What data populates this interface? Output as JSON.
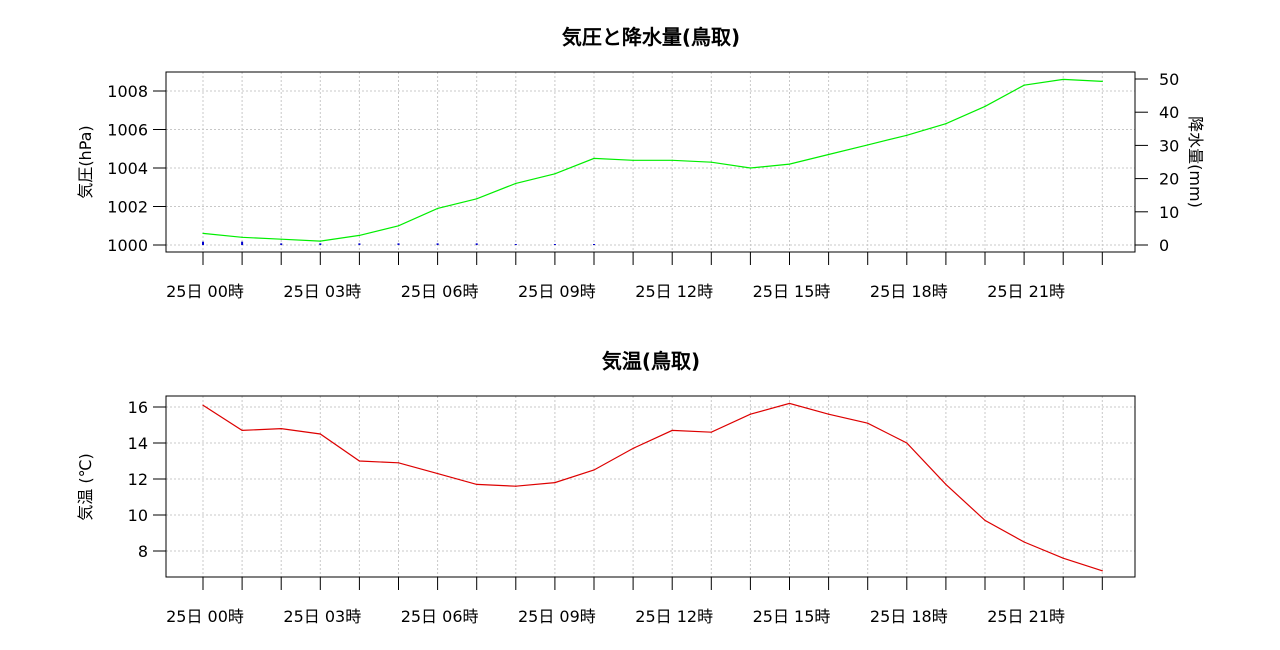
{
  "chart_data": [
    {
      "type": "line",
      "title": "気圧と降水量(鳥取)",
      "ylabel_left": "気圧(hPa)",
      "ylabel_right": "降水量(mm)",
      "ylim_left": [
        1000,
        1008.8
      ],
      "ylim_right": [
        0,
        52
      ],
      "yticks_left": [
        "1000",
        "1002",
        "1004",
        "1006",
        "1008"
      ],
      "yticks_right": [
        "0",
        "10",
        "20",
        "30",
        "40",
        "50"
      ],
      "x_tick_labels": [
        "25日  00時",
        "25日  03時",
        "25日  06時",
        "25日  09時",
        "25日  12時",
        "25日  15時",
        "25日  18時",
        "25日  21時"
      ],
      "grid": true,
      "series": [
        {
          "kind": "line",
          "axis": "left",
          "color": "#00ee00",
          "values": [
            1000.6,
            1000.4,
            1000.3,
            1000.2,
            1000.5,
            1001.0,
            1001.9,
            1002.4,
            1003.2,
            1003.7,
            1004.5,
            1004.4,
            1004.4,
            1004.3,
            1004.0,
            1004.2,
            1004.7,
            1005.2,
            1005.7,
            1006.3,
            1007.2,
            1008.3,
            1008.6,
            1008.5
          ]
        },
        {
          "kind": "bar",
          "axis": "right",
          "color": "#0000cc",
          "values": [
            1,
            1,
            0.5,
            0.5,
            0.5,
            0.5,
            0.5,
            0.5,
            0.3,
            0.3,
            0.3,
            0,
            0,
            0,
            0,
            0,
            0,
            0,
            0,
            0,
            0,
            0,
            0,
            0
          ]
        }
      ]
    },
    {
      "type": "line",
      "title": "気温(鳥取)",
      "ylabel": "気温 (℃)",
      "ylim": [
        6.7,
        16.65
      ],
      "yticks": [
        "8",
        "10",
        "12",
        "14",
        "16"
      ],
      "x_tick_labels": [
        "25日  00時",
        "25日  03時",
        "25日  06時",
        "25日  09時",
        "25日  12時",
        "25日  15時",
        "25日  18時",
        "25日  21時"
      ],
      "grid": true,
      "series": [
        {
          "kind": "line",
          "axis": "left",
          "color": "#dd0000",
          "values": [
            16.1,
            14.7,
            14.8,
            14.5,
            13.0,
            12.9,
            12.3,
            11.7,
            11.6,
            11.8,
            12.5,
            13.7,
            14.7,
            14.6,
            15.6,
            16.2,
            15.6,
            15.1,
            14.0,
            11.7,
            9.7,
            8.5,
            7.6,
            6.9
          ]
        }
      ]
    }
  ]
}
